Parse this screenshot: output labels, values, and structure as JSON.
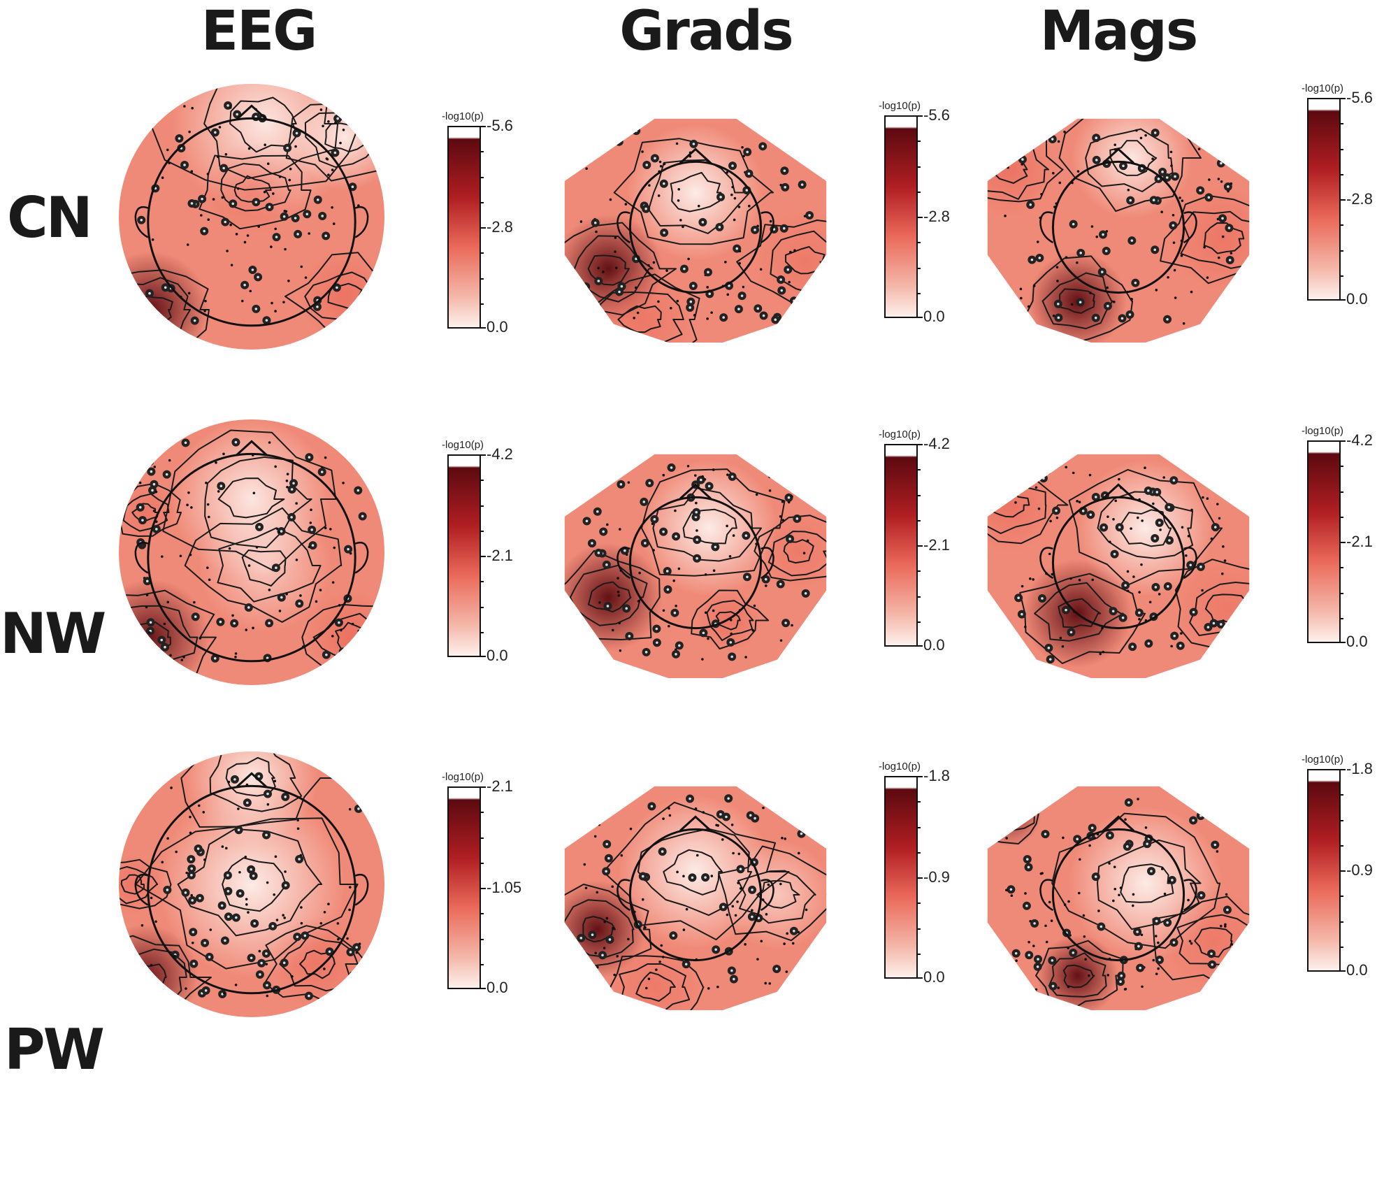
{
  "columns": [
    "EEG",
    "Grads",
    "Mags"
  ],
  "rows": [
    {
      "label": "CN",
      "panels": [
        {
          "sensor": "EEG",
          "colorbar": {
            "label": "-log10(p)",
            "max_label": "-5.6",
            "mid_label": "-2.8",
            "min_label": "0.0"
          }
        },
        {
          "sensor": "Grads",
          "colorbar": {
            "label": "-log10(p)",
            "max_label": "-5.6",
            "mid_label": "-2.8",
            "min_label": "0.0"
          }
        },
        {
          "sensor": "Mags",
          "colorbar": {
            "label": "-log10(p)",
            "max_label": "-5.6",
            "mid_label": "-2.8",
            "min_label": "0.0"
          }
        }
      ]
    },
    {
      "label": "NW",
      "panels": [
        {
          "sensor": "EEG",
          "colorbar": {
            "label": "-log10(p)",
            "max_label": "-4.2",
            "mid_label": "-2.1",
            "min_label": "0.0"
          }
        },
        {
          "sensor": "Grads",
          "colorbar": {
            "label": "-log10(p)",
            "max_label": "-4.2",
            "mid_label": "-2.1",
            "min_label": "0.0"
          }
        },
        {
          "sensor": "Mags",
          "colorbar": {
            "label": "-log10(p)",
            "max_label": "-4.2",
            "mid_label": "-2.1",
            "min_label": "0.0"
          }
        }
      ]
    },
    {
      "label": "PW",
      "panels": [
        {
          "sensor": "EEG",
          "colorbar": {
            "label": "-log10(p)",
            "max_label": "-2.1",
            "mid_label": "-1.05",
            "min_label": "0.0"
          }
        },
        {
          "sensor": "Grads",
          "colorbar": {
            "label": "-log10(p)",
            "max_label": "-1.8",
            "mid_label": "-0.9",
            "min_label": "0.0"
          }
        },
        {
          "sensor": "Mags",
          "colorbar": {
            "label": "-log10(p)",
            "max_label": "-1.8",
            "mid_label": "-0.9",
            "min_label": "0.0"
          }
        }
      ]
    }
  ],
  "colors": {
    "low": "#fdf0ec",
    "mid": "#ea6a5a",
    "high": "#5c0a10",
    "outline": "#111111"
  }
}
